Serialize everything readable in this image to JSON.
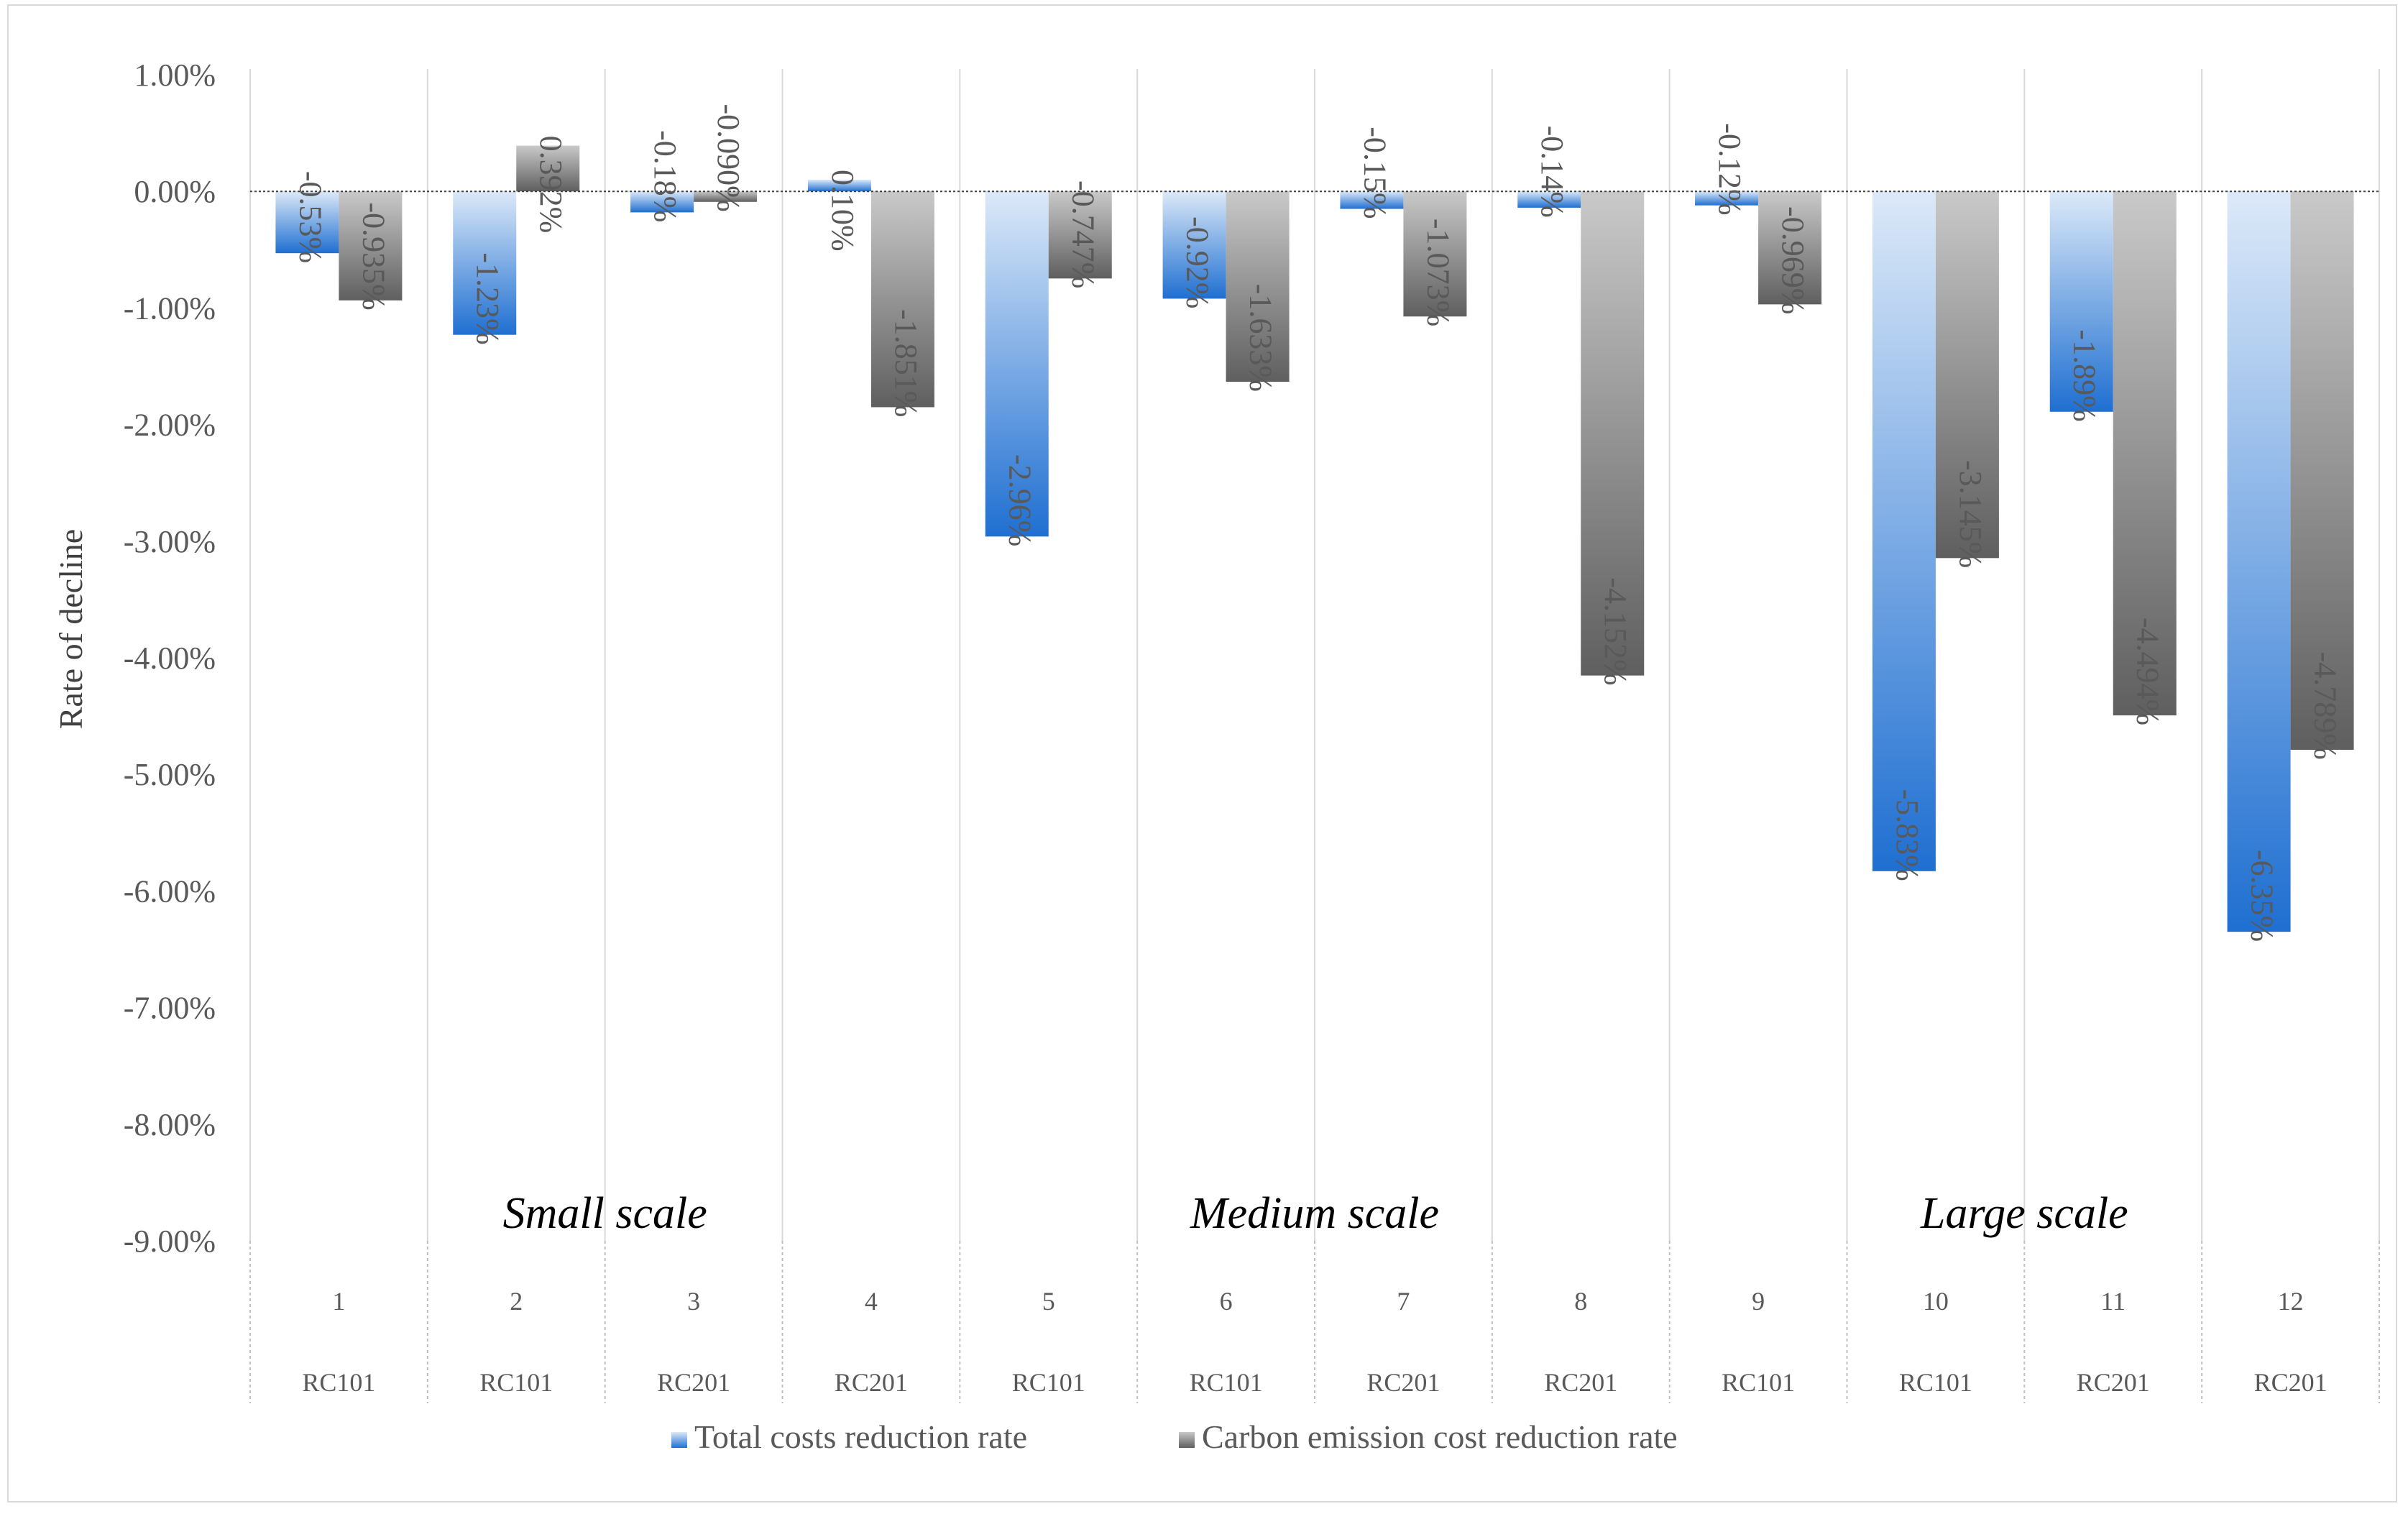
{
  "chart_data": {
    "type": "bar",
    "ylabel": "Rate of decline",
    "ylim": [
      -9,
      1
    ],
    "yticks": [
      1,
      0,
      -1,
      -2,
      -3,
      -4,
      -5,
      -6,
      -7,
      -8,
      -9
    ],
    "ytick_labels": [
      "1.00%",
      "0.00%",
      "-1.00%",
      "-2.00%",
      "-3.00%",
      "-4.00%",
      "-5.00%",
      "-6.00%",
      "-7.00%",
      "-8.00%",
      "-9.00%"
    ],
    "categories": [
      "1",
      "2",
      "3",
      "4",
      "5",
      "6",
      "7",
      "8",
      "9",
      "10",
      "11",
      "12"
    ],
    "instances": [
      "RC101",
      "RC101",
      "RC201",
      "RC201",
      "RC101",
      "RC101",
      "RC201",
      "RC201",
      "RC101",
      "RC101",
      "RC201",
      "RC201"
    ],
    "series": [
      {
        "name": "Total costs reduction rate",
        "color": "#2e75d6",
        "values": [
          -0.53,
          -1.23,
          -0.18,
          0.1,
          -2.96,
          -0.92,
          -0.15,
          -0.14,
          -0.12,
          -5.83,
          -1.89,
          -6.35
        ],
        "labels": [
          "-0.53%",
          "-1.23%",
          "-0.18%",
          "0.10%",
          "-2.96%",
          "-0.92%",
          "-0.15%",
          "-0.14%",
          "-0.12%",
          "-5.83%",
          "-1.89%",
          "-6.35%"
        ]
      },
      {
        "name": "Carbon emission cost reduction rate",
        "color": "#6b6b6b",
        "values": [
          -0.935,
          0.392,
          -0.09,
          -1.851,
          -0.747,
          -1.633,
          -1.073,
          -4.152,
          -0.969,
          -3.145,
          -4.494,
          -4.789
        ],
        "labels": [
          "-0.935%",
          "0.392%",
          "-0.090%",
          "-1.851%",
          "-0.747%",
          "-1.633%",
          "-1.073%",
          "-4.152%",
          "-0.969%",
          "-3.145%",
          "-4.494%",
          "-4.789%"
        ]
      }
    ],
    "scale_groups": [
      {
        "label": "Small scale",
        "from": 1,
        "to": 4
      },
      {
        "label": "Medium scale",
        "from": 5,
        "to": 8
      },
      {
        "label": "Large scale",
        "from": 9,
        "to": 12
      }
    ],
    "legend_position": "bottom"
  }
}
